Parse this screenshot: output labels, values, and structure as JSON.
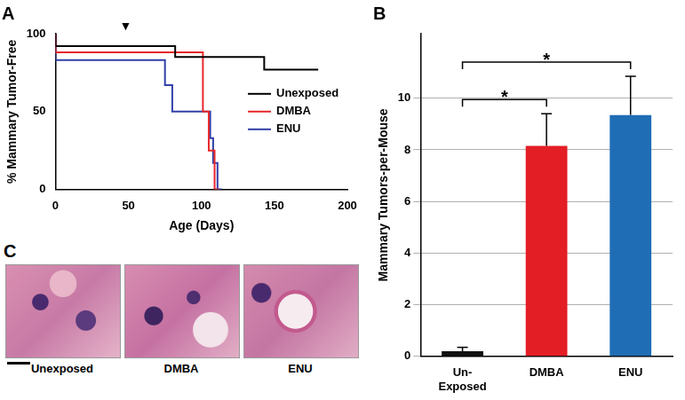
{
  "chart_data": [
    {
      "type": "line",
      "title": "A",
      "x_label": "Age (Days)",
      "y_label": "% Mammary Tumor-Free",
      "series": [
        {
          "name": "Unexposed",
          "color": "#000000",
          "x": [
            0,
            82,
            143,
            160,
            180
          ],
          "values": [
            100,
            92,
            85,
            77,
            77
          ]
        },
        {
          "name": "DMBA",
          "color": "#e8272b",
          "x": [
            0,
            101,
            105,
            109,
            112
          ],
          "values": [
            100,
            88,
            50,
            25,
            0
          ]
        },
        {
          "name": "ENU",
          "color": "#3040a8",
          "x": [
            0,
            75,
            80,
            106,
            108,
            111,
            114
          ],
          "values": [
            100,
            83,
            67,
            50,
            33,
            17,
            0
          ]
        }
      ],
      "xlim": [
        0,
        200
      ],
      "xticks": [
        0,
        50,
        100,
        150,
        200
      ],
      "ylim": [
        0,
        100
      ],
      "yticks": [
        0,
        50,
        100
      ],
      "line_style": "steps",
      "marker": "none",
      "grid": false,
      "legend": "right",
      "annotations": [
        {
          "x": 48,
          "y": 100,
          "text": "▼"
        }
      ]
    },
    {
      "type": "bar",
      "title": "B",
      "y_label": "Mammary Tumors-per-Mouse",
      "categories": [
        "Un-\nExposed",
        "DMBA",
        "ENU"
      ],
      "values": [
        0.2,
        8.15,
        9.35
      ],
      "errors": [
        0.15,
        1.25,
        1.5
      ],
      "colors": [
        "#111111",
        "#e31e24",
        "#1f6db5"
      ],
      "ylim": [
        0,
        12.5
      ],
      "yticks": [
        0,
        2,
        4,
        6,
        8,
        10
      ],
      "grid": true,
      "significance": [
        {
          "from": "Un-\nExposed",
          "to": "DMBA",
          "label": "*"
        },
        {
          "from": "Un-\nExposed",
          "to": "ENU",
          "label": "*"
        }
      ]
    }
  ],
  "images": {
    "title": "C",
    "labels": [
      "Unexposed",
      "DMBA",
      "ENU"
    ]
  }
}
